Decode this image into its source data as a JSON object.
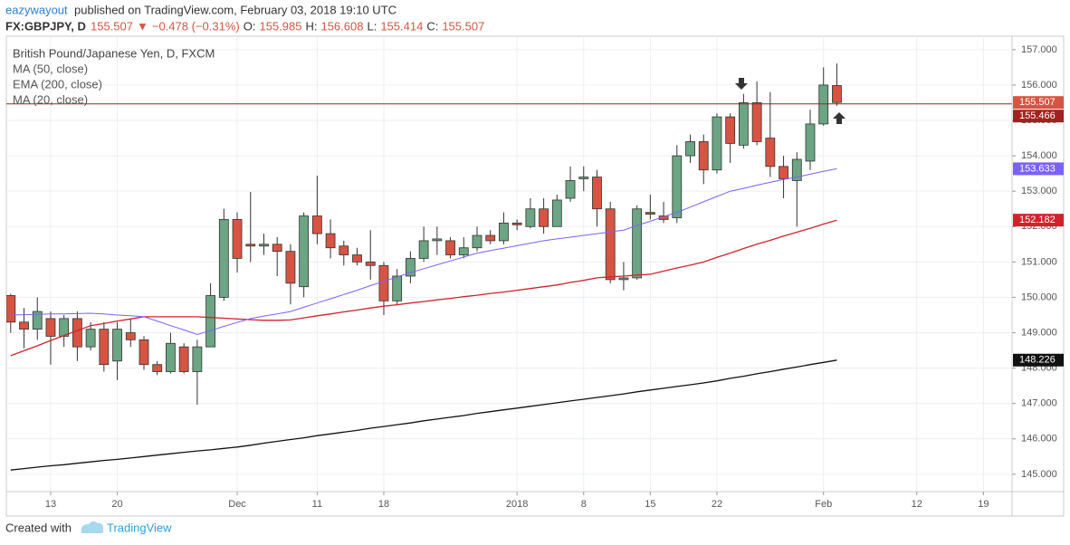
{
  "header": {
    "author": "eazywayout",
    "published": "published on TradingView.com, February 03, 2018 19:10 UTC",
    "symbol": "FX:GBPJPY, D",
    "change_arrow": "▼",
    "change": "−0.478 (−0.31%)",
    "ohlc_prefixes": [
      "O:",
      "H:",
      "L:",
      "C:"
    ]
  },
  "chart_data": {
    "type": "candlestick",
    "title": "British Pound/Japanese Yen, D, FXCM",
    "categories": [
      null,
      null,
      null,
      "13",
      null,
      null,
      null,
      null,
      "20",
      null,
      null,
      null,
      null,
      null,
      null,
      null,
      null,
      "Dec",
      null,
      null,
      null,
      null,
      null,
      "11",
      null,
      null,
      null,
      null,
      "18",
      null,
      null,
      null,
      null,
      null,
      null,
      null,
      null,
      null,
      "2018",
      null,
      null,
      null,
      null,
      "8",
      null,
      null,
      null,
      null,
      "15",
      null,
      null,
      null,
      null,
      "22",
      null,
      null,
      null,
      null,
      null,
      null,
      null,
      "Feb",
      null,
      null,
      null,
      null,
      null,
      null,
      "12",
      null,
      null,
      null,
      null,
      "19",
      null,
      null
    ],
    "open": [
      150.05,
      149.3,
      149.1,
      149.4,
      148.9,
      149.4,
      148.6,
      149.1,
      148.2,
      149.0,
      148.8,
      148.1,
      147.9,
      148.6,
      147.9,
      148.6,
      150.0,
      152.2,
      151.5,
      151.45,
      151.5,
      151.3,
      150.3,
      152.3,
      151.8,
      151.45,
      151.2,
      151.0,
      150.9,
      149.9,
      150.6,
      151.1,
      151.6,
      151.6,
      151.2,
      151.4,
      151.75,
      151.6,
      152.1,
      152.0,
      152.5,
      152.0,
      152.8,
      153.35,
      153.4,
      152.5,
      150.5,
      150.55,
      152.4,
      152.3,
      152.25,
      154.0,
      154.4,
      153.6,
      155.1,
      154.3,
      155.5,
      154.5,
      153.7,
      153.3,
      153.85,
      154.9,
      155.985,
      null,
      null,
      null,
      null,
      null,
      null,
      null,
      null,
      null,
      null,
      null,
      null,
      null
    ],
    "high": [
      150.1,
      149.7,
      150.0,
      149.6,
      149.5,
      149.6,
      149.3,
      149.3,
      149.3,
      149.4,
      148.9,
      148.2,
      149.0,
      148.7,
      148.8,
      150.4,
      152.5,
      152.4,
      152.98,
      151.8,
      151.7,
      151.5,
      152.4,
      153.44,
      152.2,
      151.6,
      151.4,
      151.9,
      151.0,
      150.8,
      151.3,
      152.0,
      152.0,
      151.7,
      151.7,
      152.0,
      151.9,
      152.4,
      152.2,
      152.8,
      152.8,
      152.9,
      153.7,
      153.7,
      153.6,
      152.7,
      151.0,
      152.6,
      152.9,
      152.7,
      154.3,
      154.6,
      154.6,
      155.2,
      155.2,
      155.75,
      156.1,
      155.8,
      154.0,
      154.1,
      155.3,
      156.5,
      156.608,
      null,
      null,
      null,
      null,
      null,
      null,
      null,
      null,
      null,
      null,
      null,
      null,
      null
    ],
    "low": [
      149.0,
      148.56,
      148.8,
      148.1,
      148.6,
      148.2,
      148.5,
      147.9,
      147.66,
      148.6,
      147.95,
      147.8,
      147.85,
      147.85,
      146.97,
      148.6,
      149.9,
      150.7,
      151.0,
      151.2,
      150.6,
      149.8,
      150.0,
      151.5,
      151.1,
      150.9,
      150.9,
      150.5,
      149.5,
      149.8,
      150.4,
      151.0,
      151.2,
      151.1,
      151.1,
      151.3,
      151.5,
      151.5,
      151.9,
      151.95,
      151.8,
      152.0,
      152.7,
      153.0,
      152.0,
      150.4,
      150.2,
      150.5,
      152.2,
      152.1,
      152.1,
      153.8,
      153.2,
      153.5,
      153.8,
      154.2,
      154.3,
      153.4,
      152.8,
      152.0,
      153.6,
      154.85,
      155.414,
      null,
      null,
      null,
      null,
      null,
      null,
      null,
      null,
      null,
      null,
      null,
      null,
      null
    ],
    "close": [
      149.3,
      149.1,
      149.6,
      148.9,
      149.4,
      148.6,
      149.1,
      148.1,
      149.1,
      148.8,
      148.1,
      147.9,
      148.7,
      147.9,
      148.6,
      150.05,
      152.2,
      151.1,
      151.45,
      151.5,
      151.3,
      150.4,
      152.3,
      151.8,
      151.4,
      151.2,
      151.0,
      150.9,
      149.9,
      150.6,
      151.1,
      151.6,
      151.65,
      151.2,
      151.4,
      151.75,
      151.6,
      152.1,
      152.05,
      152.5,
      152.0,
      152.75,
      153.3,
      153.4,
      152.5,
      150.5,
      150.55,
      152.5,
      152.35,
      152.2,
      154.0,
      154.4,
      153.6,
      155.1,
      154.35,
      155.5,
      154.4,
      153.7,
      153.35,
      153.9,
      154.9,
      156.0,
      155.507,
      null,
      null,
      null,
      null,
      null,
      null,
      null,
      null,
      null,
      null,
      null,
      null,
      null
    ],
    "up_color": "#6ba583",
    "down_color": "#d75442",
    "series": [
      {
        "name": "MA (50, close)",
        "color": "#d3222b",
        "values": [
          148.35,
          148.49,
          148.63,
          148.78,
          148.92,
          149.06,
          149.2,
          149.26,
          149.33,
          149.39,
          149.45,
          149.45,
          149.45,
          149.45,
          149.45,
          149.43,
          149.41,
          149.39,
          149.37,
          149.35,
          149.35,
          149.36,
          149.42,
          149.48,
          149.53,
          149.59,
          149.64,
          149.7,
          149.75,
          149.79,
          149.84,
          149.88,
          149.93,
          149.97,
          150.02,
          150.06,
          150.11,
          150.15,
          150.2,
          150.25,
          150.3,
          150.35,
          150.42,
          150.48,
          150.55,
          150.58,
          150.6,
          150.63,
          150.65,
          150.74,
          150.83,
          150.91,
          151.0,
          151.13,
          151.25,
          151.38,
          151.5,
          151.61,
          151.73,
          151.84,
          151.95,
          152.07,
          152.182,
          null,
          null,
          null,
          null,
          null,
          null,
          null,
          null,
          null,
          null,
          null,
          null,
          null
        ]
      },
      {
        "name": "EMA (200, close)",
        "color": "#111111",
        "values": [
          145.12,
          145.16,
          145.2,
          145.24,
          145.27,
          145.31,
          145.35,
          145.39,
          145.42,
          145.46,
          145.5,
          145.54,
          145.58,
          145.62,
          145.66,
          145.69,
          145.73,
          145.77,
          145.82,
          145.88,
          145.93,
          145.98,
          146.03,
          146.09,
          146.14,
          146.19,
          146.24,
          146.3,
          146.35,
          146.4,
          146.45,
          146.51,
          146.56,
          146.61,
          146.66,
          146.72,
          146.77,
          146.82,
          146.87,
          146.92,
          146.97,
          147.02,
          147.07,
          147.12,
          147.17,
          147.22,
          147.27,
          147.33,
          147.38,
          147.43,
          147.48,
          147.53,
          147.58,
          147.64,
          147.71,
          147.77,
          147.84,
          147.9,
          147.97,
          148.03,
          148.1,
          148.16,
          148.226,
          null,
          null,
          null,
          null,
          null,
          null,
          null,
          null,
          null,
          null,
          null,
          null,
          null
        ]
      },
      {
        "name": "MA (20, close)",
        "color": "#7b61ff",
        "values": [
          149.5,
          149.51,
          149.52,
          149.53,
          149.53,
          149.54,
          149.55,
          149.53,
          149.5,
          149.48,
          149.45,
          149.33,
          149.2,
          149.08,
          148.95,
          149.06,
          149.18,
          149.29,
          149.4,
          149.47,
          149.53,
          149.6,
          149.72,
          149.84,
          149.96,
          150.08,
          150.2,
          150.33,
          150.45,
          150.58,
          150.7,
          150.81,
          150.92,
          151.03,
          151.14,
          151.25,
          151.32,
          151.39,
          151.46,
          151.53,
          151.6,
          151.65,
          151.7,
          151.75,
          151.8,
          151.85,
          151.9,
          152.03,
          152.15,
          152.28,
          152.4,
          152.55,
          152.7,
          152.85,
          153.0,
          153.08,
          153.17,
          153.25,
          153.33,
          153.4,
          153.48,
          153.56,
          153.633,
          null,
          null,
          null,
          null,
          null,
          null,
          null,
          null,
          null,
          null,
          null,
          null,
          null
        ]
      }
    ],
    "hline": {
      "value": 155.466,
      "color": "#a32121"
    },
    "ylim": [
      144.51,
      157.38
    ],
    "yticks": [
      {
        "value": 145,
        "label": "145.000"
      },
      {
        "value": 146,
        "label": "146.000"
      },
      {
        "value": 147,
        "label": "147.000"
      },
      {
        "value": 148,
        "label": "148.000"
      },
      {
        "value": 149,
        "label": "149.000"
      },
      {
        "value": 150,
        "label": "150.000"
      },
      {
        "value": 151,
        "label": "151.000"
      },
      {
        "value": 152,
        "label": "152.000"
      },
      {
        "value": 153,
        "label": "153.000"
      },
      {
        "value": 154,
        "label": "154.000"
      },
      {
        "value": 155,
        "label": "155.000"
      },
      {
        "value": 156,
        "label": "156.000"
      },
      {
        "value": 157,
        "label": "157.000"
      }
    ],
    "grid": true
  },
  "footer": {
    "created": "Created with",
    "brand": "TradingView"
  }
}
